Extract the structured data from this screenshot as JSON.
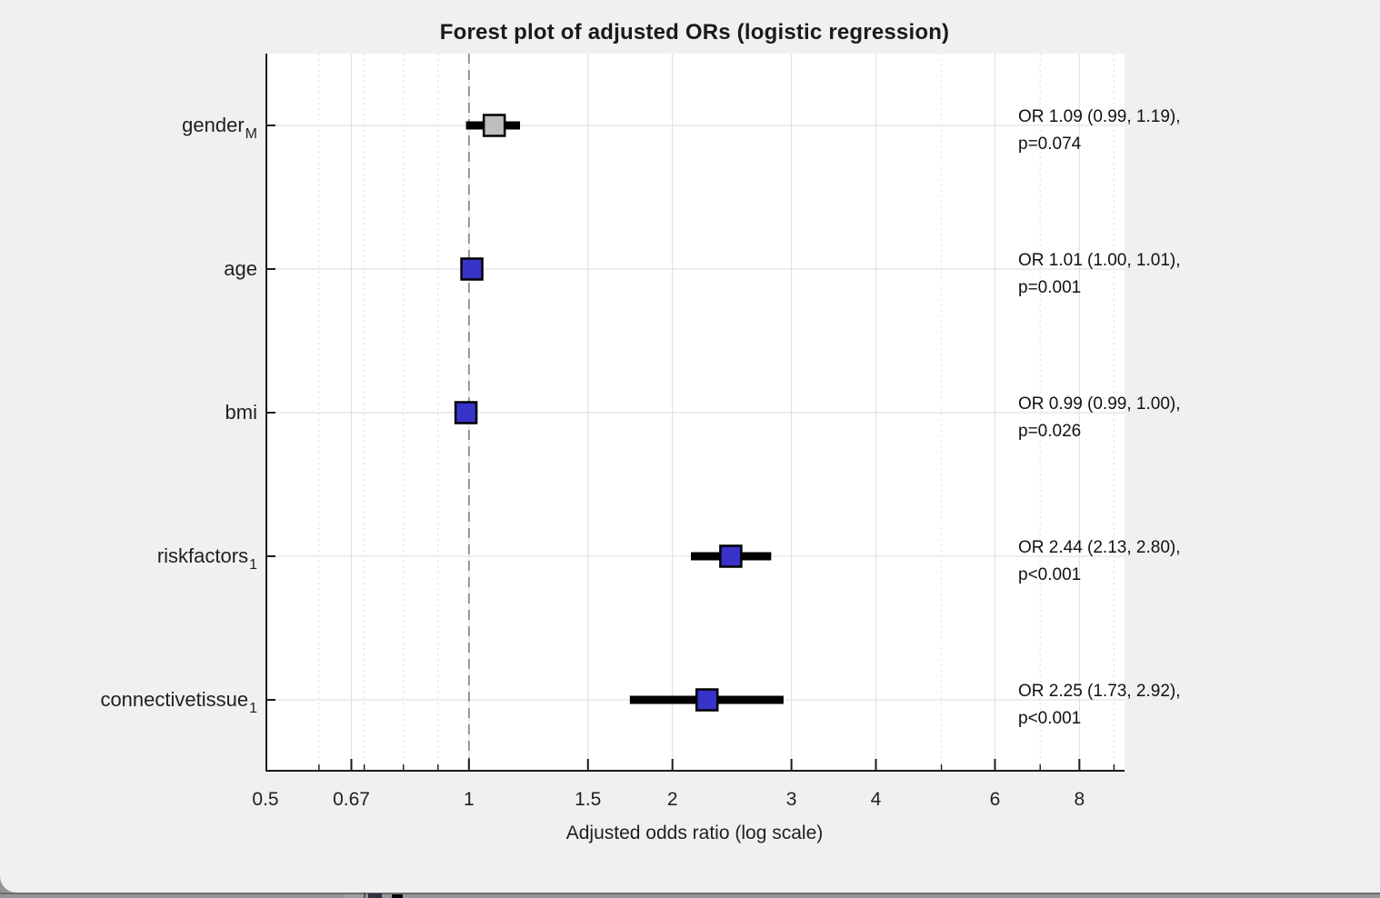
{
  "chart_data": {
    "type": "scatter",
    "subtype": "forest-plot",
    "title": "Forest plot of adjusted ORs (logistic regression)",
    "xlabel": "Adjusted odds ratio (log scale)",
    "xscale": "log",
    "xlim": [
      0.5,
      9.33
    ],
    "xticks": [
      0.5,
      0.67,
      1,
      1.5,
      2,
      3,
      4,
      6,
      8
    ],
    "xtick_labels": [
      "0.5",
      "0.67",
      "1",
      "1.5",
      "2",
      "3",
      "4",
      "6",
      "8"
    ],
    "minor_grid_values": [
      0.6,
      0.7,
      0.8,
      0.9,
      5,
      7,
      9
    ],
    "grid": "on",
    "reference_line": {
      "x": 1,
      "style": "dashed"
    },
    "rows": [
      {
        "label_base": "gender",
        "label_sub": "M",
        "or": 1.09,
        "ci_low": 0.99,
        "ci_high": 1.19,
        "p_text": "p=0.074",
        "annotation_line1": "OR 1.09 (0.99, 1.19),",
        "significant": false
      },
      {
        "label_base": "age",
        "label_sub": "",
        "or": 1.01,
        "ci_low": 1.0,
        "ci_high": 1.01,
        "p_text": "p=0.001",
        "annotation_line1": "OR 1.01 (1.00, 1.01),",
        "significant": true
      },
      {
        "label_base": "bmi",
        "label_sub": "",
        "or": 0.99,
        "ci_low": 0.99,
        "ci_high": 1.0,
        "p_text": "p=0.026",
        "annotation_line1": "OR 0.99 (0.99, 1.00),",
        "significant": true
      },
      {
        "label_base": "riskfactors",
        "label_sub": "1",
        "or": 2.44,
        "ci_low": 2.13,
        "ci_high": 2.8,
        "p_text": "p<0.001",
        "annotation_line1": "OR 2.44 (2.13, 2.80),",
        "significant": true
      },
      {
        "label_base": "connectivetissue",
        "label_sub": "1",
        "or": 2.25,
        "ci_low": 1.73,
        "ci_high": 2.92,
        "p_text": "p<0.001",
        "annotation_line1": "OR 2.25 (1.73, 2.92),",
        "significant": true
      }
    ],
    "colors": {
      "figure_background": "#f0f0f0",
      "plot_background": "#ffffff",
      "significant_marker": "#3833c8",
      "nonsignificant_marker": "#bebebe",
      "marker_edge": "#000000",
      "ci_bar": "#000000",
      "axis_spine": "#1a1a1a",
      "major_grid": "#e2e2e2",
      "minor_grid": "#d8d8d8",
      "reference_line": "#8a8a8a",
      "text": "#1f1f1f"
    },
    "legend": "none"
  },
  "background_window": {
    "strip_color": "#969696",
    "strip_edge_color": "#6e6e6e"
  }
}
